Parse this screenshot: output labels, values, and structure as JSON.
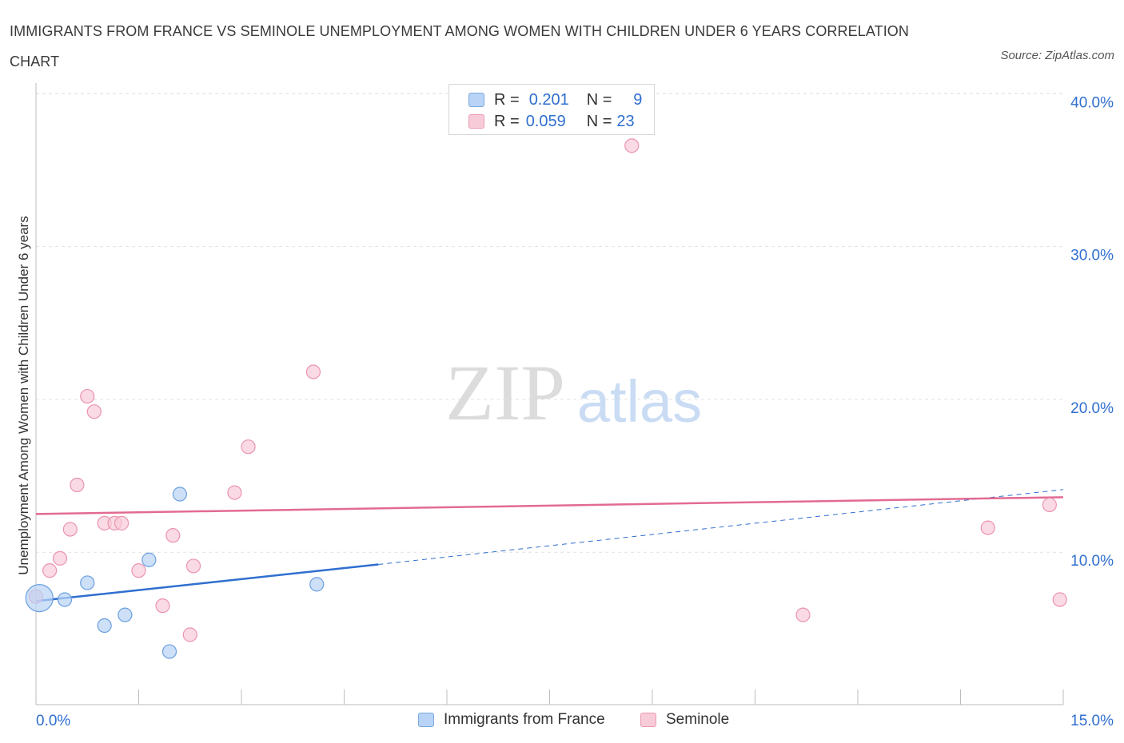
{
  "title": "IMMIGRANTS FROM FRANCE VS SEMINOLE UNEMPLOYMENT AMONG WOMEN WITH CHILDREN UNDER 6 YEARS CORRELATION CHART",
  "source": "Source: ZipAtlas.com",
  "watermark": {
    "zip": "ZIP",
    "atlas": "atlas"
  },
  "legend": {
    "rows": [
      {
        "r_label": "R =",
        "r_value": "0.201",
        "n_label": "N =",
        "n_value": "9"
      },
      {
        "r_label": "R =",
        "r_value": "0.059",
        "n_label": "N =",
        "n_value": "23"
      }
    ]
  },
  "bottom_legend": [
    "Immigrants from France",
    "Seminole"
  ],
  "colors": {
    "blue_fill": "#b8d3f5",
    "blue_stroke": "#6b9fe0",
    "blue_line": "#2f6fcf",
    "pink_fill": "#f8cbd8",
    "pink_stroke": "#eb94ae",
    "pink_line": "#e26b92",
    "grid": "#e2e2e2",
    "tick_text": "#2f6fcf"
  },
  "chart_data": {
    "type": "scatter",
    "title": "IMMIGRANTS FROM FRANCE VS SEMINOLE UNEMPLOYMENT AMONG WOMEN WITH CHILDREN UNDER 6 YEARS CORRELATION CHART",
    "xlabel": "",
    "ylabel": "Unemployment Among Women with Children Under 6 years",
    "xlim": [
      0,
      15
    ],
    "ylim": [
      0,
      40
    ],
    "x_tick_labels": [
      "0.0%",
      "15.0%"
    ],
    "y_ticks": [
      10,
      20,
      30,
      40
    ],
    "y_tick_labels": [
      "10.0%",
      "20.0%",
      "30.0%",
      "40.0%"
    ],
    "grid": true,
    "series": [
      {
        "name": "Immigrants from France",
        "color": "blue",
        "points": [
          {
            "x": 0.05,
            "y": 7.0,
            "large": true
          },
          {
            "x": 0.42,
            "y": 6.9
          },
          {
            "x": 0.75,
            "y": 8.0
          },
          {
            "x": 1.0,
            "y": 5.2
          },
          {
            "x": 1.3,
            "y": 5.9
          },
          {
            "x": 1.65,
            "y": 9.5
          },
          {
            "x": 1.95,
            "y": 3.5
          },
          {
            "x": 2.1,
            "y": 13.8
          },
          {
            "x": 4.1,
            "y": 7.9
          }
        ],
        "trend": {
          "x0": 0.0,
          "y0": 6.8,
          "x1": 5.0,
          "y1": 9.2,
          "dash_x1": 15.0,
          "dash_y1": 14.1
        }
      },
      {
        "name": "Seminole",
        "color": "pink",
        "points": [
          {
            "x": 0.0,
            "y": 7.1
          },
          {
            "x": 0.2,
            "y": 8.8
          },
          {
            "x": 0.35,
            "y": 9.6
          },
          {
            "x": 0.5,
            "y": 11.5
          },
          {
            "x": 0.6,
            "y": 14.4
          },
          {
            "x": 0.75,
            "y": 20.2
          },
          {
            "x": 0.85,
            "y": 19.2
          },
          {
            "x": 1.0,
            "y": 11.9
          },
          {
            "x": 1.15,
            "y": 11.9
          },
          {
            "x": 1.25,
            "y": 11.9
          },
          {
            "x": 1.5,
            "y": 8.8
          },
          {
            "x": 1.85,
            "y": 6.5
          },
          {
            "x": 2.0,
            "y": 11.1
          },
          {
            "x": 2.25,
            "y": 4.6
          },
          {
            "x": 2.3,
            "y": 9.1
          },
          {
            "x": 2.9,
            "y": 13.9
          },
          {
            "x": 3.1,
            "y": 16.9
          },
          {
            "x": 4.05,
            "y": 21.8
          },
          {
            "x": 8.7,
            "y": 36.6
          },
          {
            "x": 11.2,
            "y": 5.9
          },
          {
            "x": 13.9,
            "y": 11.6
          },
          {
            "x": 14.8,
            "y": 13.1
          },
          {
            "x": 14.95,
            "y": 6.9
          }
        ],
        "trend": {
          "x0": 0.0,
          "y0": 12.5,
          "x1": 15.0,
          "y1": 13.6
        }
      }
    ]
  }
}
